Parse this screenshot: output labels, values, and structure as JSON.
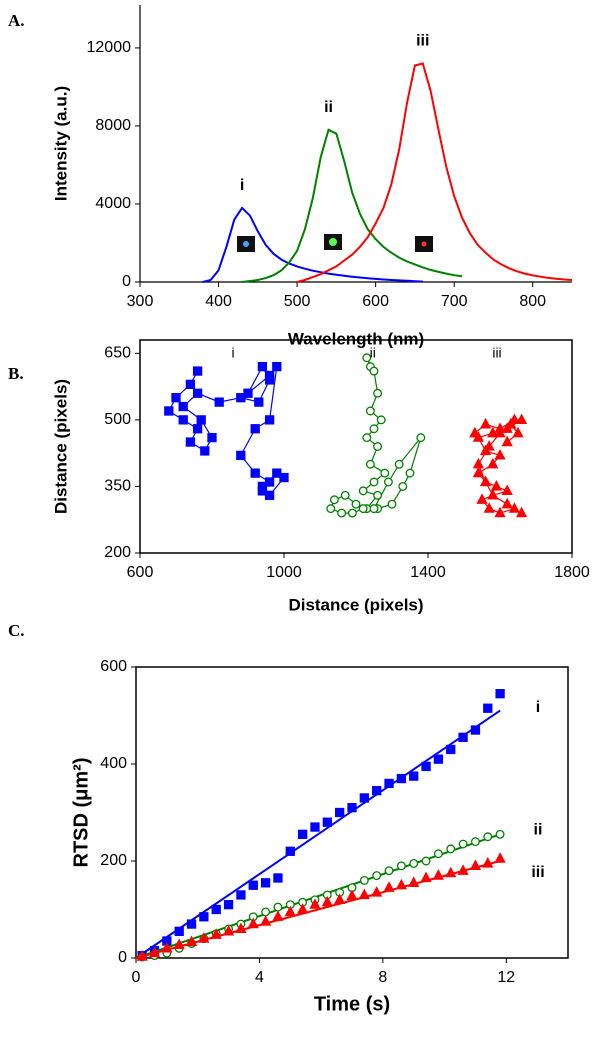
{
  "chart_data": [
    {
      "type": "line",
      "label": "A.",
      "x_label": "Wavelength (nm)",
      "y_label": "Intensity (a.u.)",
      "xlim": [
        300,
        850
      ],
      "xticks": [
        300,
        400,
        500,
        600,
        700,
        800
      ],
      "ylim": [
        0,
        14200
      ],
      "yticks": [
        0,
        4000,
        8000,
        12000
      ],
      "frame": false,
      "series": [
        {
          "name": "i",
          "color": "#0000ff",
          "x": [
            380,
            390,
            400,
            410,
            420,
            430,
            440,
            450,
            460,
            470,
            480,
            490,
            500,
            510,
            520,
            530,
            540,
            550,
            560,
            570,
            580,
            590,
            600,
            610,
            620,
            630,
            640,
            650,
            660
          ],
          "values": [
            0,
            100,
            600,
            1800,
            3200,
            3800,
            3400,
            2600,
            1900,
            1450,
            1150,
            950,
            800,
            680,
            580,
            500,
            430,
            370,
            320,
            270,
            230,
            190,
            160,
            130,
            100,
            80,
            60,
            40,
            20
          ]
        },
        {
          "name": "ii",
          "color": "#008000",
          "x": [
            430,
            440,
            450,
            460,
            470,
            480,
            490,
            500,
            510,
            520,
            530,
            540,
            550,
            560,
            570,
            580,
            590,
            600,
            610,
            620,
            630,
            640,
            650,
            660,
            670,
            680,
            690,
            700,
            710
          ],
          "values": [
            0,
            50,
            100,
            200,
            350,
            600,
            1000,
            1600,
            2700,
            4300,
            6400,
            7800,
            7600,
            6200,
            4600,
            3500,
            2700,
            2200,
            1800,
            1500,
            1250,
            1050,
            900,
            750,
            620,
            520,
            430,
            350,
            290
          ]
        },
        {
          "name": "iii",
          "color": "#ff0000",
          "x": [
            500,
            510,
            520,
            530,
            540,
            550,
            560,
            570,
            580,
            590,
            600,
            610,
            620,
            630,
            640,
            650,
            660,
            670,
            680,
            690,
            700,
            710,
            720,
            730,
            740,
            750,
            760,
            770,
            780,
            790,
            800,
            810,
            820,
            830,
            840,
            850
          ],
          "values": [
            0,
            100,
            250,
            400,
            600,
            800,
            1100,
            1400,
            1800,
            2300,
            3000,
            3800,
            5000,
            6800,
            9200,
            11100,
            11200,
            9800,
            7800,
            5900,
            4400,
            3300,
            2500,
            1900,
            1500,
            1150,
            900,
            700,
            550,
            430,
            340,
            270,
            210,
            170,
            130,
            100
          ]
        }
      ]
    },
    {
      "type": "trajectory",
      "label": "B.",
      "x_label": "Distance (pixels)",
      "y_label": "Distance (pixels)",
      "xlim": [
        600,
        1800
      ],
      "xticks": [
        600,
        1000,
        1400,
        1800
      ],
      "ylim": [
        200,
        680
      ],
      "yticks": [
        200,
        350,
        500,
        650
      ],
      "frame": true,
      "series": [
        {
          "name": "i",
          "color": "#0000ff",
          "marker": "square",
          "filled": true,
          "x": [
            760,
            740,
            700,
            680,
            720,
            760,
            740,
            780,
            800,
            770,
            720,
            760,
            820,
            880,
            930,
            960,
            940,
            900,
            960,
            980,
            960,
            920,
            880,
            920,
            960,
            940,
            980,
            1000,
            960,
            940
          ],
          "values": [
            610,
            580,
            550,
            520,
            500,
            480,
            450,
            430,
            460,
            500,
            530,
            560,
            540,
            550,
            540,
            590,
            620,
            560,
            600,
            620,
            500,
            480,
            420,
            380,
            360,
            340,
            380,
            370,
            330,
            350
          ]
        },
        {
          "name": "ii",
          "color": "#008000",
          "marker": "circle",
          "filled": false,
          "x": [
            1240,
            1230,
            1250,
            1260,
            1240,
            1270,
            1250,
            1230,
            1260,
            1240,
            1280,
            1250,
            1220,
            1260,
            1230,
            1200,
            1170,
            1140,
            1130,
            1160,
            1190,
            1220,
            1260,
            1300,
            1330,
            1350,
            1380,
            1320,
            1290,
            1250
          ],
          "values": [
            620,
            640,
            610,
            560,
            520,
            500,
            480,
            460,
            440,
            400,
            380,
            360,
            340,
            330,
            300,
            310,
            330,
            320,
            300,
            290,
            290,
            300,
            300,
            310,
            350,
            380,
            460,
            400,
            360,
            300
          ]
        },
        {
          "name": "iii",
          "color": "#ff0000",
          "marker": "triangle",
          "filled": true,
          "x": [
            1530,
            1560,
            1600,
            1640,
            1660,
            1620,
            1580,
            1540,
            1560,
            1600,
            1580,
            1540,
            1560,
            1590,
            1620,
            1580,
            1550,
            1570,
            1600,
            1640,
            1660,
            1620,
            1580,
            1560,
            1540,
            1570,
            1600,
            1630,
            1650,
            1620
          ],
          "values": [
            470,
            490,
            480,
            500,
            500,
            480,
            470,
            460,
            430,
            420,
            400,
            380,
            360,
            350,
            340,
            330,
            320,
            300,
            290,
            300,
            290,
            310,
            330,
            360,
            400,
            440,
            470,
            490,
            470,
            450
          ]
        }
      ]
    },
    {
      "type": "scatter",
      "label": "C.",
      "x_label": "Time (s)",
      "y_label": "RTSD (μm²)",
      "xlim": [
        0,
        14
      ],
      "xticks": [
        0,
        4,
        8,
        12
      ],
      "ylim": [
        0,
        600
      ],
      "yticks": [
        0,
        200,
        400,
        600
      ],
      "frame": true,
      "series": [
        {
          "name": "i",
          "color": "#0000ff",
          "marker": "square",
          "filled": true,
          "x": [
            0.2,
            0.6,
            1.0,
            1.4,
            1.8,
            2.2,
            2.6,
            3.0,
            3.4,
            3.8,
            4.2,
            4.6,
            5.0,
            5.4,
            5.8,
            6.2,
            6.6,
            7.0,
            7.4,
            7.8,
            8.2,
            8.6,
            9.0,
            9.4,
            9.8,
            10.2,
            10.6,
            11.0,
            11.4,
            11.8
          ],
          "values": [
            5,
            15,
            35,
            55,
            70,
            85,
            100,
            110,
            130,
            150,
            155,
            165,
            220,
            255,
            270,
            280,
            300,
            310,
            330,
            345,
            360,
            370,
            375,
            395,
            410,
            430,
            455,
            470,
            515,
            545
          ],
          "fit_x": [
            0,
            11.8
          ],
          "fit_values": [
            0,
            510
          ]
        },
        {
          "name": "ii",
          "color": "#008000",
          "marker": "circle",
          "filled": false,
          "x": [
            0.2,
            0.6,
            1.0,
            1.4,
            1.8,
            2.2,
            2.6,
            3.0,
            3.4,
            3.8,
            4.2,
            4.6,
            5.0,
            5.4,
            5.8,
            6.2,
            6.6,
            7.0,
            7.4,
            7.8,
            8.2,
            8.6,
            9.0,
            9.4,
            9.8,
            10.2,
            10.6,
            11.0,
            11.4,
            11.8
          ],
          "values": [
            2,
            5,
            10,
            20,
            30,
            40,
            50,
            60,
            70,
            85,
            95,
            105,
            110,
            115,
            120,
            130,
            135,
            145,
            160,
            170,
            180,
            190,
            195,
            200,
            215,
            225,
            235,
            240,
            250,
            255
          ],
          "fit_x": [
            0,
            11.8
          ],
          "fit_values": [
            0,
            255
          ]
        },
        {
          "name": "iii",
          "color": "#ff0000",
          "marker": "triangle",
          "filled": true,
          "x": [
            0.2,
            0.6,
            1.0,
            1.4,
            1.8,
            2.2,
            2.6,
            3.0,
            3.4,
            3.8,
            4.2,
            4.6,
            5.0,
            5.4,
            5.8,
            6.2,
            6.6,
            7.0,
            7.4,
            7.8,
            8.2,
            8.6,
            9.0,
            9.4,
            9.8,
            10.2,
            10.6,
            11.0,
            11.4,
            11.8
          ],
          "values": [
            3,
            10,
            20,
            27,
            33,
            40,
            48,
            55,
            60,
            70,
            75,
            85,
            95,
            100,
            110,
            115,
            120,
            128,
            130,
            135,
            145,
            150,
            155,
            165,
            170,
            175,
            180,
            190,
            195,
            205
          ],
          "fit_x": [
            0,
            11.8
          ],
          "fit_values": [
            0,
            200
          ]
        }
      ]
    }
  ]
}
